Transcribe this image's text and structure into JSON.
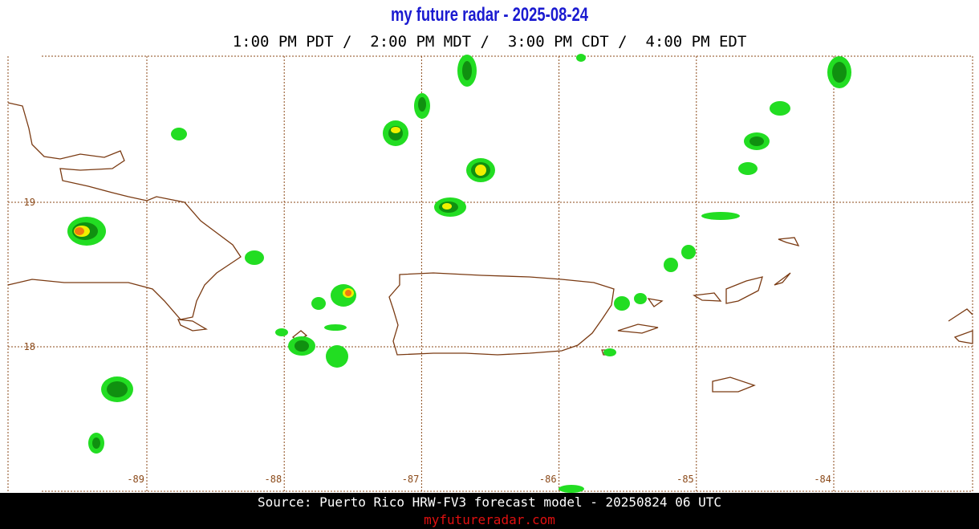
{
  "header": {
    "title": "my future radar - 2025-08-24",
    "times": "1:00 PM PDT /  2:00 PM MDT /  3:00 PM CDT /  4:00 PM EDT"
  },
  "map": {
    "lon_ticks": [
      -89,
      -88,
      -87,
      -86,
      -85,
      -84
    ],
    "lat_ticks": [
      19,
      18
    ]
  },
  "footer": {
    "source": "Source: Puerto Rico HRW-FV3 forecast model - 20250824 06 UTC",
    "site": "myfutureradar.com"
  }
}
